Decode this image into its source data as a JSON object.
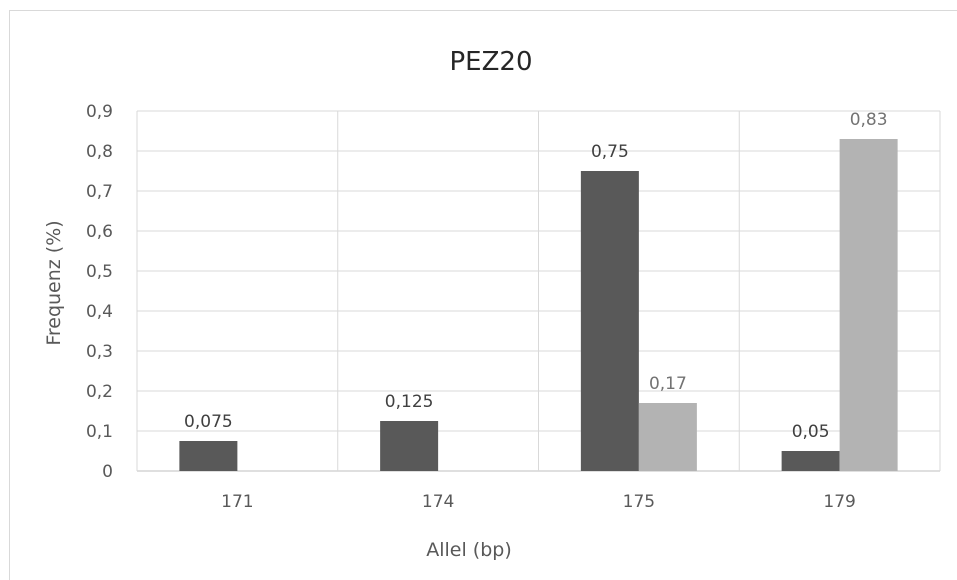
{
  "chart_data": {
    "type": "bar",
    "title": "PEZ20",
    "xlabel": "Allel (bp)",
    "ylabel": "Frequenz (%)",
    "categories": [
      "171",
      "174",
      "175",
      "179"
    ],
    "series": [
      {
        "values": [
          0.075,
          0.125,
          0.75,
          0.05
        ],
        "labels": [
          "0,075",
          "0,125",
          "0,75",
          "0,05"
        ],
        "color": "#595959",
        "label_color": "#404040"
      },
      {
        "values": [
          null,
          null,
          0.17,
          0.83
        ],
        "labels": [
          null,
          null,
          "0,17",
          "0,83"
        ],
        "color": "#b3b3b3",
        "label_color": "#737373"
      }
    ],
    "ylim": [
      0,
      0.9
    ],
    "yticks": [
      {
        "value": 0,
        "label": "0"
      },
      {
        "value": 0.1,
        "label": "0,1"
      },
      {
        "value": 0.2,
        "label": "0,2"
      },
      {
        "value": 0.3,
        "label": "0,3"
      },
      {
        "value": 0.4,
        "label": "0,4"
      },
      {
        "value": 0.5,
        "label": "0,5"
      },
      {
        "value": 0.6,
        "label": "0,6"
      },
      {
        "value": 0.7,
        "label": "0,7"
      },
      {
        "value": 0.8,
        "label": "0,8"
      },
      {
        "value": 0.9,
        "label": "0,9"
      }
    ],
    "grid": true,
    "legend": "none"
  }
}
